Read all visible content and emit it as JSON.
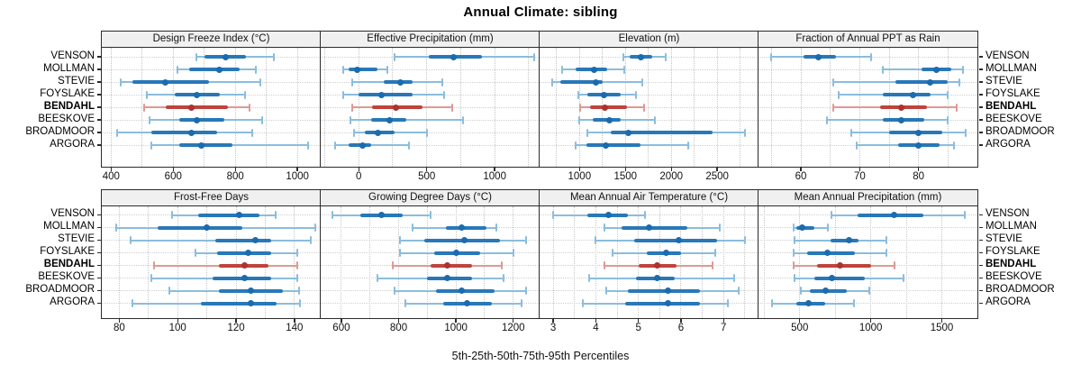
{
  "title": "Annual Climate: sibling",
  "caption": "5th-25th-50th-75th-95th Percentiles",
  "colors": {
    "blue_thin": "#8bbdde",
    "blue_thick": "#2878b8",
    "blue_dot": "#1b6bae",
    "red_thin": "#dc9a95",
    "red_thick": "#bf433c",
    "red_dot": "#a93430",
    "strip_bg": "#f0f0f0",
    "panel_border": "#2b2b2b",
    "gridline": "#c6c6c6"
  },
  "chart_data": {
    "type": "dotplot-intervals",
    "layout": "2 rows x 4 columns lattice, site labels on both sides",
    "percentiles": [
      5,
      25,
      50,
      75,
      95
    ],
    "sites": [
      "VENSON",
      "MOLLMAN",
      "STEVIE",
      "FOYSLAKE",
      "BENDAHL",
      "BEESKOVE",
      "BROADMOOR",
      "ARGORA"
    ],
    "highlight_site": "BENDAHL",
    "panels": [
      {
        "id": "design-freeze-index",
        "title": "Design Freeze Index (°C)",
        "xlim": [
          370,
          1075
        ],
        "ticks": [
          400,
          600,
          800,
          1000
        ],
        "gridlines": [
          400,
          500,
          600,
          700,
          800,
          900,
          1000
        ],
        "series": [
          [
            675,
            700,
            770,
            835,
            925
          ],
          [
            615,
            650,
            750,
            815,
            865
          ],
          [
            430,
            470,
            575,
            715,
            880
          ],
          [
            515,
            605,
            675,
            750,
            830
          ],
          [
            505,
            575,
            660,
            775,
            845
          ],
          [
            525,
            620,
            675,
            765,
            885
          ],
          [
            420,
            530,
            660,
            740,
            855
          ],
          [
            530,
            620,
            690,
            790,
            1035
          ]
        ]
      },
      {
        "id": "effective-precipitation",
        "title": "Effective Precipitation (mm)",
        "xlim": [
          -280,
          1330
        ],
        "ticks": [
          0,
          500,
          1000
        ],
        "gridlines": [
          -250,
          0,
          250,
          500,
          750,
          1000,
          1250
        ],
        "series": [
          [
            260,
            515,
            700,
            905,
            1290
          ],
          [
            -115,
            -75,
            -10,
            140,
            210
          ],
          [
            -50,
            185,
            305,
            395,
            615
          ],
          [
            -115,
            0,
            165,
            395,
            630
          ],
          [
            -50,
            100,
            270,
            470,
            690
          ],
          [
            -60,
            90,
            225,
            350,
            765
          ],
          [
            -35,
            45,
            140,
            265,
            505
          ],
          [
            -175,
            -75,
            25,
            90,
            370
          ]
        ]
      },
      {
        "id": "elevation",
        "title": "Elevation (m)",
        "xlim": [
          565,
          2950
        ],
        "ticks": [
          1000,
          1500,
          2000,
          2500
        ],
        "gridlines": [
          750,
          1000,
          1250,
          1500,
          1750,
          2000,
          2250,
          2500,
          2750
        ],
        "series": [
          [
            1480,
            1550,
            1670,
            1790,
            1940
          ],
          [
            815,
            960,
            1155,
            1305,
            1490
          ],
          [
            705,
            795,
            1180,
            1255,
            1680
          ],
          [
            985,
            1090,
            1265,
            1450,
            1615
          ],
          [
            1010,
            1110,
            1280,
            1515,
            1705
          ],
          [
            995,
            1140,
            1330,
            1450,
            1820
          ],
          [
            1085,
            1340,
            1535,
            2450,
            2800
          ],
          [
            960,
            1075,
            1290,
            1660,
            2180
          ]
        ]
      },
      {
        "id": "fraction-ppt-rain",
        "title": "Fraction of Annual PPT as Rain",
        "xlim": [
          52.8,
          90
        ],
        "ticks": [
          60,
          70,
          80
        ],
        "gridlines": [
          55,
          60,
          65,
          70,
          75,
          80,
          85
        ],
        "series": [
          [
            55,
            60.5,
            63,
            66,
            72
          ],
          [
            74,
            80.5,
            83,
            85.5,
            87.5
          ],
          [
            65.5,
            76,
            82,
            85,
            87
          ],
          [
            66.5,
            74,
            79,
            82,
            85
          ],
          [
            65.5,
            73.5,
            77,
            81.5,
            86.5
          ],
          [
            64.5,
            74,
            77,
            81,
            85
          ],
          [
            68.5,
            75,
            80,
            84,
            88
          ],
          [
            69.5,
            76.5,
            80,
            83.5,
            86
          ]
        ]
      },
      {
        "id": "frost-free-days",
        "title": "Frost-Free Days",
        "xlim": [
          74,
          149
        ],
        "ticks": [
          80,
          100,
          120,
          140
        ],
        "gridlines": [
          80,
          90,
          100,
          110,
          120,
          130,
          140
        ],
        "series": [
          [
            98,
            107,
            121,
            128,
            133.5
          ],
          [
            79,
            93,
            110,
            122,
            147
          ],
          [
            84,
            113,
            126.5,
            132,
            145.5
          ],
          [
            106,
            113.5,
            124,
            132,
            141
          ],
          [
            92,
            114,
            123,
            131,
            141
          ],
          [
            91,
            112,
            123,
            132,
            141
          ],
          [
            97,
            114,
            125,
            136,
            141.5
          ],
          [
            84.5,
            108,
            125,
            134,
            142
          ]
        ]
      },
      {
        "id": "growing-degree-days",
        "title": "Growing Degree Days (°C)",
        "xlim": [
          528,
          1292
        ],
        "ticks": [
          600,
          800,
          1000,
          1200
        ],
        "gridlines": [
          600,
          700,
          800,
          900,
          1000,
          1100,
          1200
        ],
        "series": [
          [
            570,
            665,
            740,
            815,
            910
          ],
          [
            850,
            965,
            1020,
            1105,
            1140
          ],
          [
            805,
            890,
            1030,
            1155,
            1245
          ],
          [
            805,
            925,
            1000,
            1085,
            1200
          ],
          [
            780,
            910,
            970,
            1055,
            1160
          ],
          [
            725,
            900,
            970,
            1055,
            1165
          ],
          [
            785,
            930,
            1020,
            1135,
            1245
          ],
          [
            825,
            955,
            1040,
            1125,
            1230
          ]
        ]
      },
      {
        "id": "mean-annual-air-temperature",
        "title": "Mean Annual Air Temperature (°C)",
        "xlim": [
          2.68,
          7.82
        ],
        "ticks": [
          3,
          4,
          5,
          6,
          7
        ],
        "gridlines": [
          3,
          3.5,
          4,
          4.5,
          5,
          5.5,
          6,
          6.5,
          7,
          7.5
        ],
        "series": [
          [
            3.0,
            3.8,
            4.3,
            4.75,
            5.15
          ],
          [
            4.2,
            4.6,
            5.25,
            6.15,
            6.9
          ],
          [
            4.0,
            4.9,
            5.95,
            6.85,
            7.5
          ],
          [
            4.4,
            5.2,
            5.65,
            6.0,
            6.8
          ],
          [
            4.2,
            5.0,
            5.45,
            5.9,
            6.75
          ],
          [
            3.85,
            4.95,
            5.45,
            5.85,
            7.25
          ],
          [
            4.25,
            4.75,
            5.7,
            6.45,
            7.35
          ],
          [
            3.7,
            4.7,
            5.7,
            6.45,
            7.1
          ]
        ]
      },
      {
        "id": "mean-annual-precipitation",
        "title": "Mean Annual Precipitation (mm)",
        "xlim": [
          210,
          1750
        ],
        "ticks": [
          500,
          1000,
          1500
        ],
        "gridlines": [
          250,
          500,
          750,
          1000,
          1250,
          1500
        ],
        "series": [
          [
            725,
            905,
            1165,
            1370,
            1660
          ],
          [
            455,
            475,
            515,
            600,
            695
          ],
          [
            465,
            715,
            850,
            915,
            1110
          ],
          [
            455,
            555,
            695,
            885,
            1110
          ],
          [
            460,
            625,
            785,
            1000,
            1165
          ],
          [
            465,
            600,
            725,
            960,
            1230
          ],
          [
            505,
            570,
            685,
            830,
            990
          ],
          [
            305,
            475,
            560,
            680,
            880
          ]
        ]
      }
    ]
  }
}
